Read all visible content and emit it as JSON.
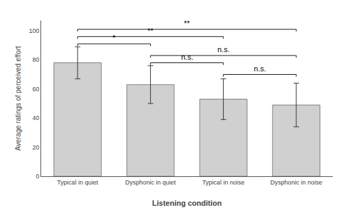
{
  "chart_data": {
    "type": "bar",
    "categories": [
      "Typical in quiet",
      "Dysphonic in quiet",
      "Typical in noise",
      "Dysphonic in noise"
    ],
    "values": [
      78,
      63,
      53,
      49
    ],
    "errors": [
      11,
      13,
      14,
      15
    ],
    "color": "#d0d0d0",
    "ylabel": "Average ratings of perceived effort",
    "xlabel": "Listening condition",
    "ylim": [
      0,
      107
    ],
    "yticks": [
      0,
      20,
      40,
      60,
      80,
      100
    ],
    "grid": false,
    "significance": [
      {
        "x1": 0,
        "x2": 1,
        "y": 91,
        "label": "*"
      },
      {
        "x1": 0,
        "x2": 2,
        "y": 96,
        "label": "**"
      },
      {
        "x1": 0,
        "x2": 3,
        "y": 101,
        "label": "**"
      },
      {
        "x1": 1,
        "x2": 2,
        "y": 78,
        "label": "n.s."
      },
      {
        "x1": 1,
        "x2": 3,
        "y": 83,
        "label": "n.s."
      },
      {
        "x1": 2,
        "x2": 3,
        "y": 70,
        "label": "n.s."
      }
    ]
  }
}
